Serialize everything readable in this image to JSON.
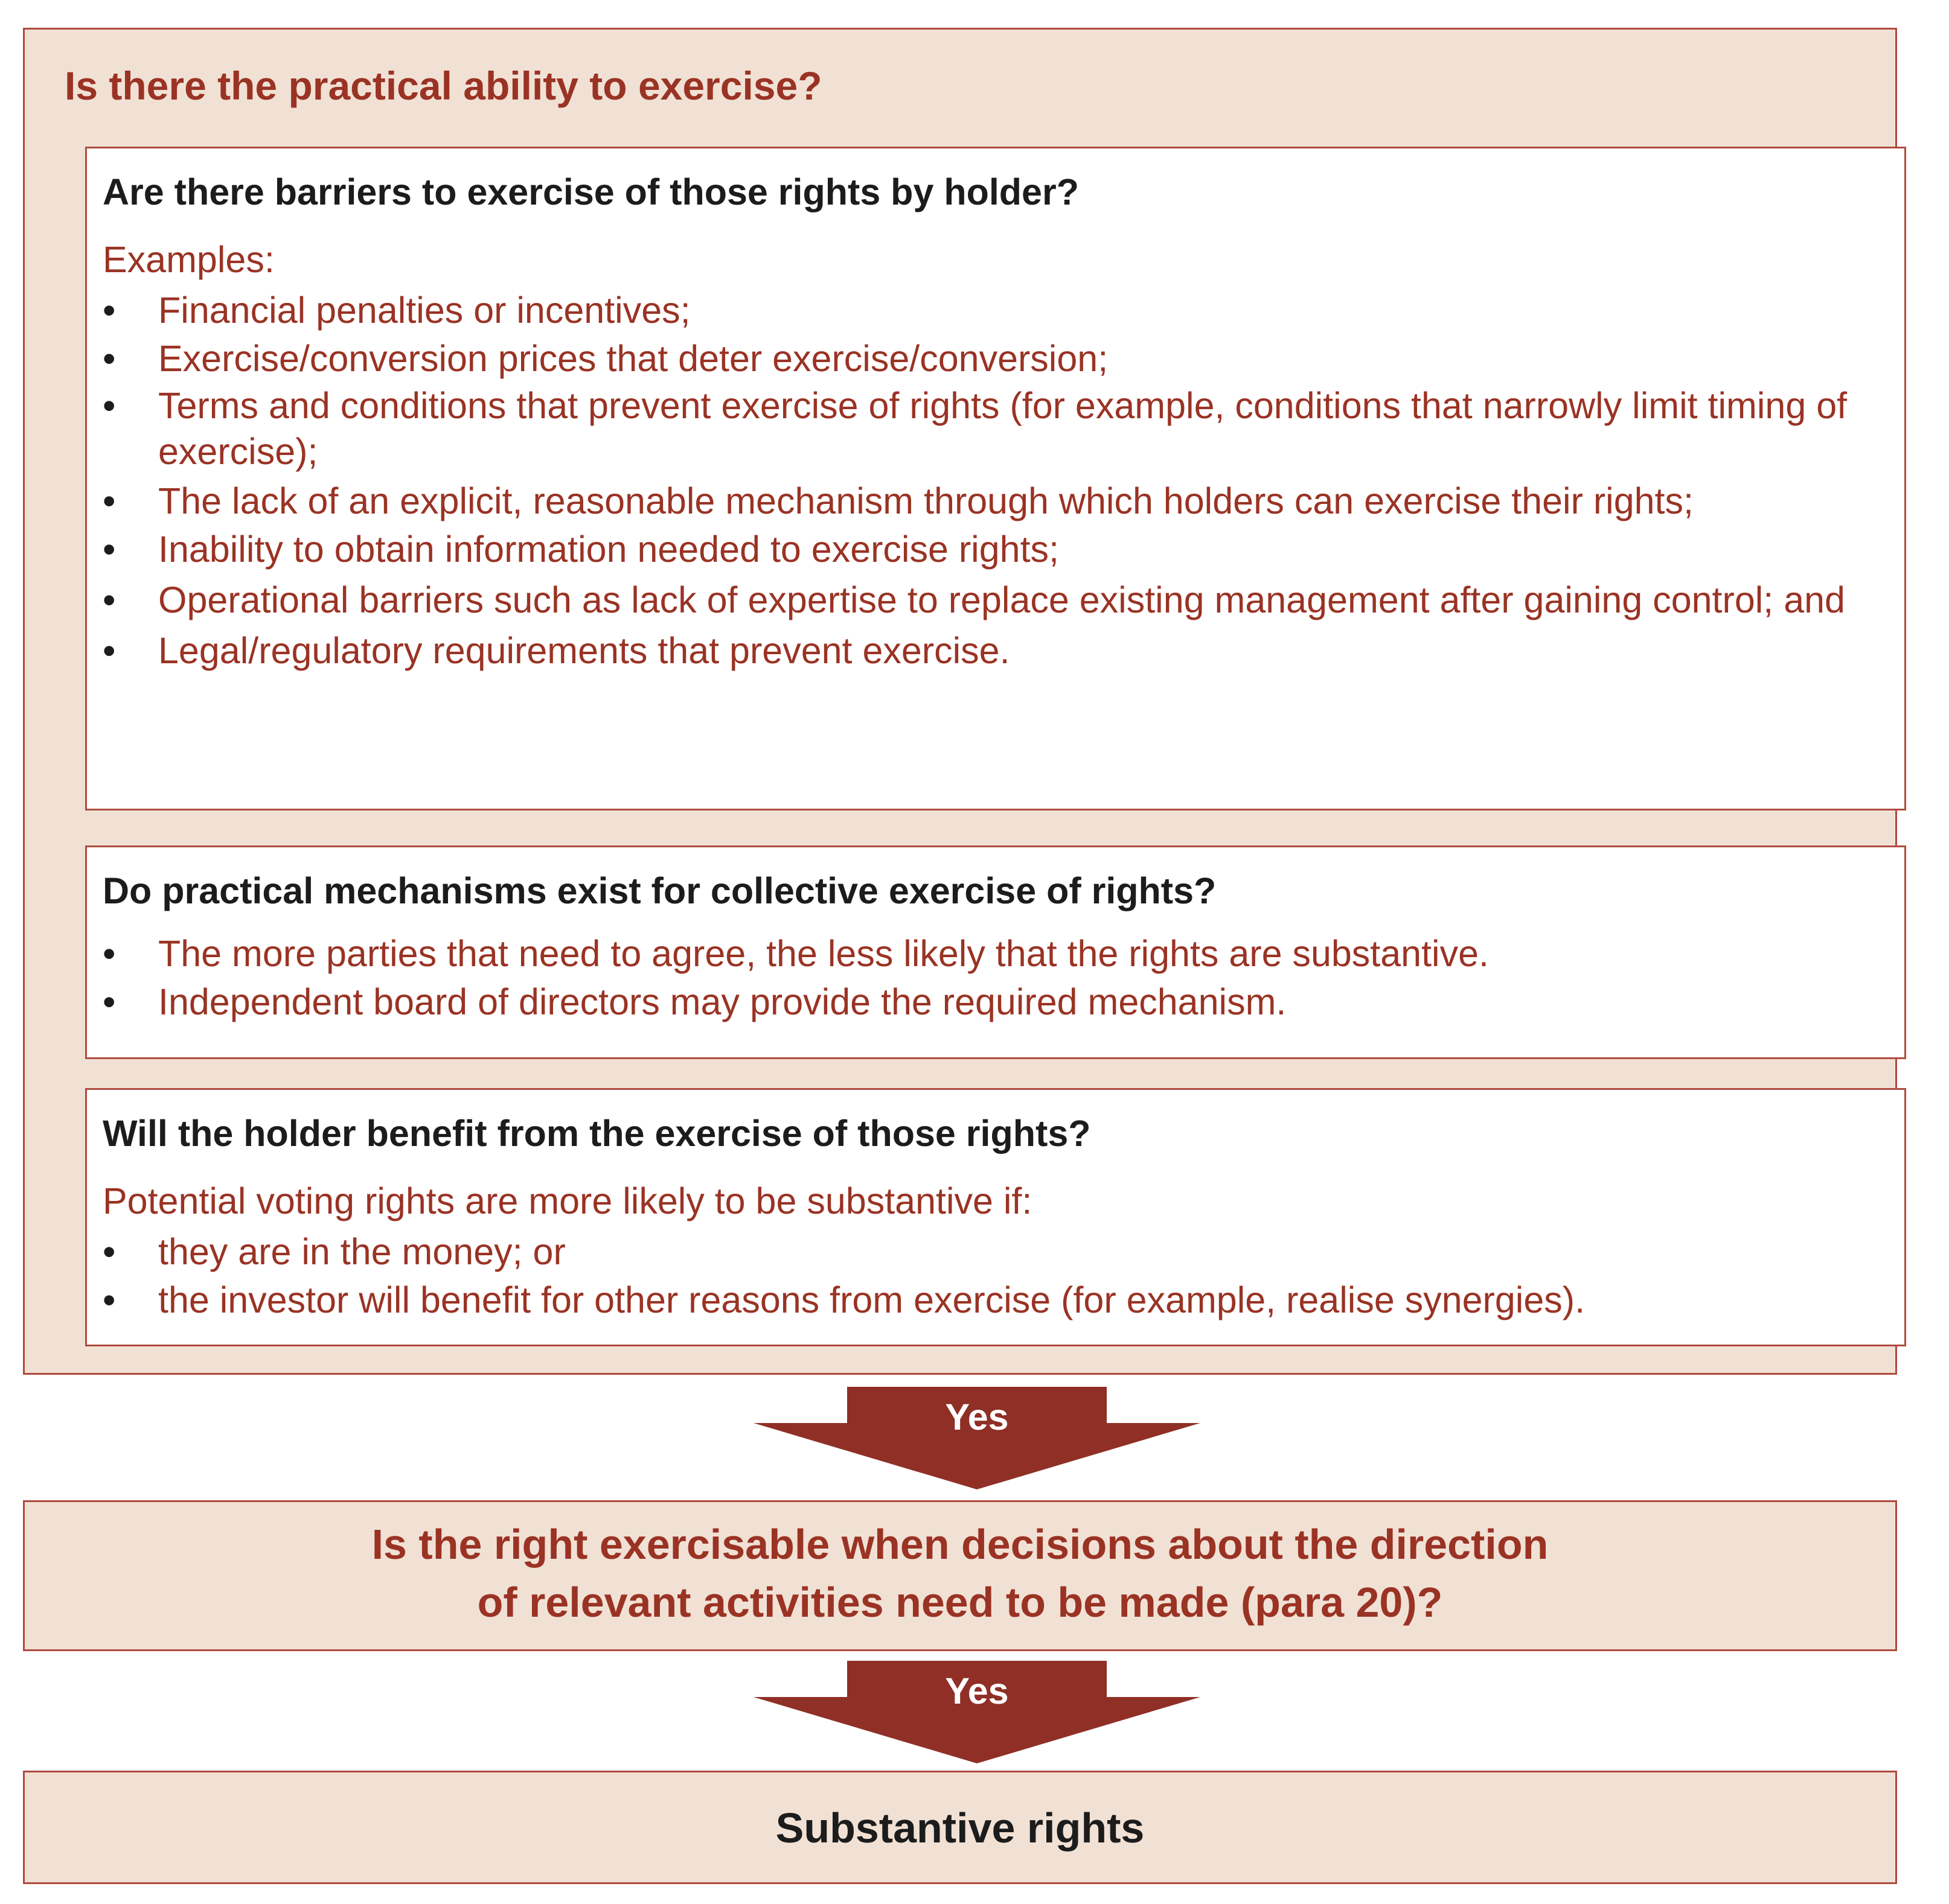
{
  "outer": {
    "title": "Is there the practical ability to exercise?"
  },
  "panels": [
    {
      "heading": "Are there barriers to exercise of those rights by holder?",
      "intro": "Examples:",
      "bullets": [
        "Financial penalties or incentives;",
        "Exercise/conversion prices that deter exercise/conversion;",
        "Terms and conditions that prevent exercise of rights (for example, conditions that narrowly limit timing of exercise);",
        "The lack of an explicit, reasonable mechanism through which holders can exercise their rights;",
        "Inability to obtain information needed to exercise rights;",
        "Operational barriers such as lack of expertise to replace existing management after gaining control; and",
        "Legal/regulatory requirements that prevent exercise."
      ]
    },
    {
      "heading": "Do practical mechanisms exist for collective exercise of rights?",
      "bullets": [
        "The more parties that need to agree, the less likely that the rights are substantive.",
        "Independent board of directors may provide the required mechanism."
      ]
    },
    {
      "heading": "Will the holder benefit from the exercise of those rights?",
      "intro": "Potential voting rights are more likely to be substantive if:",
      "bullets": [
        "they are in the money; or",
        "the investor will benefit for other reasons from exercise (for example, realise synergies)."
      ]
    }
  ],
  "arrows": [
    {
      "label": "Yes"
    },
    {
      "label": "Yes"
    }
  ],
  "decision": {
    "line1": "Is the right exercisable when decisions about the direction",
    "line2": "of relevant activities need to be made (para 20)?"
  },
  "result": {
    "text": "Substantive rights"
  },
  "bullet_glyph": "•",
  "colors": {
    "accent": "#9a3324",
    "arrow": "#8f2f26",
    "fill": "#f1e1d5",
    "border": "#b04a3e",
    "text": "#1c1c1c"
  }
}
